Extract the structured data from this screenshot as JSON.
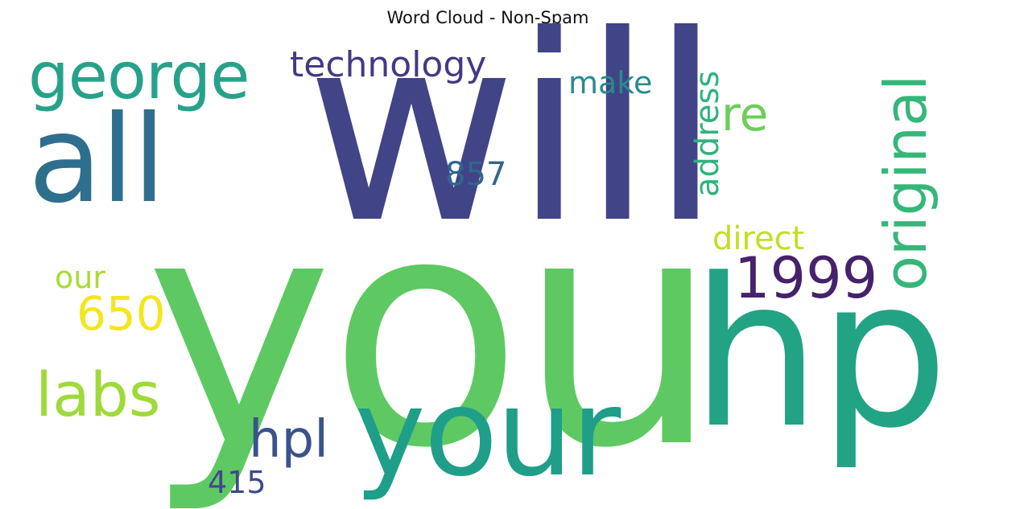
{
  "chart_data": {
    "type": "word-cloud",
    "title": "Word Cloud - Non-Spam",
    "words": [
      {
        "text": "you",
        "color": "#5ec962"
      },
      {
        "text": "will",
        "color": "#414487"
      },
      {
        "text": "all",
        "color": "#2f6f8e"
      },
      {
        "text": "hp",
        "color": "#22a384"
      },
      {
        "text": "your",
        "color": "#1f9e89"
      },
      {
        "text": "george",
        "color": "#27a28a"
      },
      {
        "text": "technology",
        "color": "#443983"
      },
      {
        "text": "original",
        "color": "#35b779"
      },
      {
        "text": "1999",
        "color": "#46216c"
      },
      {
        "text": "re",
        "color": "#6ccd5a"
      },
      {
        "text": "make",
        "color": "#2a8a8c"
      },
      {
        "text": "address",
        "color": "#2eb37c"
      },
      {
        "text": "857",
        "color": "#31668e"
      },
      {
        "text": "direct",
        "color": "#c2df23"
      },
      {
        "text": "our",
        "color": "#a8db34"
      },
      {
        "text": "650",
        "color": "#f4e61e"
      },
      {
        "text": "labs",
        "color": "#9fda3a"
      },
      {
        "text": "hpl",
        "color": "#3b528b"
      },
      {
        "text": "415",
        "color": "#3f4a8a"
      }
    ]
  }
}
